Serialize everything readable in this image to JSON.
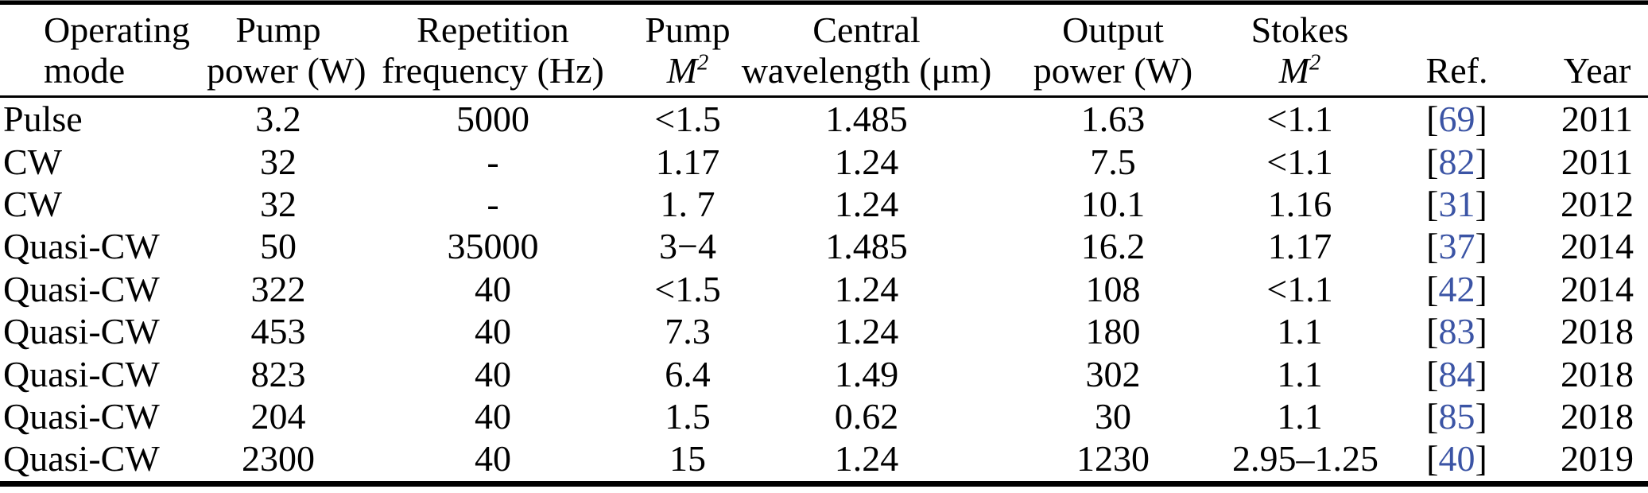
{
  "colors": {
    "text": "#000000",
    "ref_link_blue": "#3B54A5",
    "rule": "#000000",
    "background": "#ffffff"
  },
  "table": {
    "ref_bracket_open": "[",
    "ref_bracket_close": "]",
    "columns": [
      {
        "id": "operating_mode",
        "line1": "Operating",
        "line2": "mode"
      },
      {
        "id": "pump_power",
        "line1": "Pump",
        "line2": "power (W)"
      },
      {
        "id": "rep_freq",
        "line1": "Repetition",
        "line2": "frequency (Hz)"
      },
      {
        "id": "pump_m2",
        "line1": "Pump",
        "m2_base": "M",
        "m2_sup": "2"
      },
      {
        "id": "central_wavelength",
        "line1": "Central",
        "line2": "wavelength (μm)"
      },
      {
        "id": "output_power",
        "line1": "Output",
        "line2": "power (W)"
      },
      {
        "id": "stokes_m2",
        "line1": "Stokes",
        "m2_base": "M",
        "m2_sup": "2"
      },
      {
        "id": "ref",
        "line1": "",
        "line2": "Ref."
      },
      {
        "id": "year",
        "line1": "",
        "line2": "Year"
      }
    ],
    "rows": [
      {
        "operating_mode": "Pulse",
        "pump_power": "3.2",
        "rep_freq": "5000",
        "pump_m2": "<1.5",
        "central_wavelength": "1.485",
        "output_power": "1.63",
        "stokes_m2": "<1.1",
        "ref": "69",
        "year": "2011"
      },
      {
        "operating_mode": "CW",
        "pump_power": "32",
        "rep_freq": "-",
        "pump_m2": "1.17",
        "central_wavelength": "1.24",
        "output_power": "7.5",
        "stokes_m2": "<1.1",
        "ref": "82",
        "year": "2011"
      },
      {
        "operating_mode": "CW",
        "pump_power": "32",
        "rep_freq": "-",
        "pump_m2": "1. 7",
        "central_wavelength": "1.24",
        "output_power": "10.1",
        "stokes_m2": "1.16",
        "ref": "31",
        "year": "2012"
      },
      {
        "operating_mode": "Quasi-CW",
        "pump_power": "50",
        "rep_freq": "35000",
        "pump_m2": "3−4",
        "central_wavelength": "1.485",
        "output_power": "16.2",
        "stokes_m2": "1.17",
        "ref": "37",
        "year": "2014"
      },
      {
        "operating_mode": "Quasi-CW",
        "pump_power": "322",
        "rep_freq": "40",
        "pump_m2": "<1.5",
        "central_wavelength": "1.24",
        "output_power": "108",
        "stokes_m2": "<1.1",
        "ref": "42",
        "year": "2014"
      },
      {
        "operating_mode": "Quasi-CW",
        "pump_power": "453",
        "rep_freq": "40",
        "pump_m2": "7.3",
        "central_wavelength": "1.24",
        "output_power": "180",
        "stokes_m2": "1.1",
        "ref": "83",
        "year": "2018"
      },
      {
        "operating_mode": "Quasi-CW",
        "pump_power": "823",
        "rep_freq": "40",
        "pump_m2": "6.4",
        "central_wavelength": "1.49",
        "output_power": "302",
        "stokes_m2": "1.1",
        "ref": "84",
        "year": "2018"
      },
      {
        "operating_mode": "Quasi-CW",
        "pump_power": "204",
        "rep_freq": "40",
        "pump_m2": "1.5",
        "central_wavelength": "0.62",
        "output_power": "30",
        "stokes_m2": "1.1",
        "ref": "85",
        "year": "2018"
      },
      {
        "operating_mode": "Quasi-CW",
        "pump_power": "2300",
        "rep_freq": "40",
        "pump_m2": "15",
        "central_wavelength": "1.24",
        "output_power": "1230",
        "stokes_m2": "2.95–1.25",
        "ref": "40",
        "year": "2019"
      }
    ]
  }
}
